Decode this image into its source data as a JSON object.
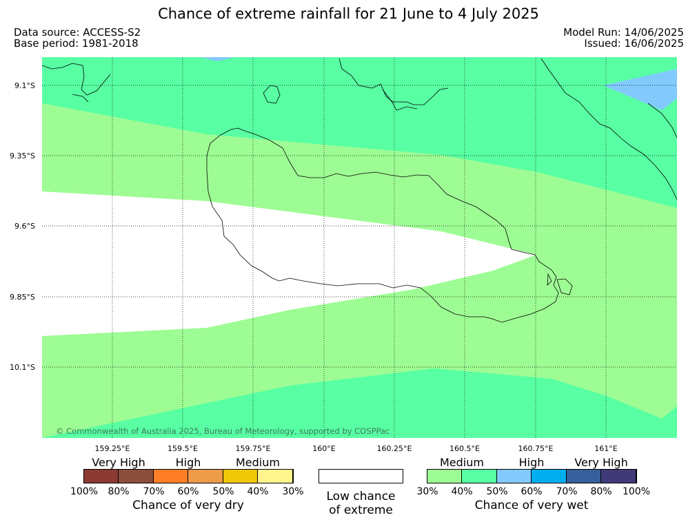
{
  "title": "Chance of extreme rainfall for 21 June to 4 July 2025",
  "meta": {
    "left_line1": "Data source: ACCESS-S2",
    "left_line2": "Base period: 1981-2018",
    "right_line1": "Model Run: 14/06/2025",
    "right_line2": "Issued: 16/06/2025"
  },
  "map": {
    "lat_labels": [
      "9.1°S",
      "9.35°S",
      "9.6°S",
      "9.85°S",
      "10.1°S"
    ],
    "lon_labels": [
      "159.25°E",
      "159.5°E",
      "159.75°E",
      "160°E",
      "160.25°E",
      "160.5°E",
      "160.75°E",
      "161°E"
    ],
    "copyright": "© Commonwealth of Australia 2025, Bureau of Meteorology, supported by COSPPac",
    "colors": {
      "medium_wet": "#9efc94",
      "high_40_50": "#58ffa3",
      "wet_50_60": "#82cafc",
      "low": "#ffffff"
    }
  },
  "legend": {
    "dry": {
      "categories": [
        "Very High",
        "High",
        "Medium"
      ],
      "percent_labels": [
        "100%",
        "80%",
        "70%",
        "60%",
        "50%",
        "40%",
        "30%"
      ],
      "colors": [
        "#8c3a32",
        "#8b4e3c",
        "#ff7f26",
        "#ee9b4a",
        "#f0c808",
        "#fff58c"
      ],
      "caption": "Chance of very dry"
    },
    "low": {
      "caption_line1": "Low chance",
      "caption_line2": "of extreme",
      "color": "#ffffff"
    },
    "wet": {
      "categories": [
        "Medium",
        "High",
        "Very High"
      ],
      "percent_labels": [
        "30%",
        "40%",
        "50%",
        "60%",
        "70%",
        "80%",
        "100%"
      ],
      "colors": [
        "#9efc94",
        "#58ffa3",
        "#82cafc",
        "#00aeef",
        "#36609c",
        "#403b78"
      ],
      "caption": "Chance of very wet"
    }
  }
}
